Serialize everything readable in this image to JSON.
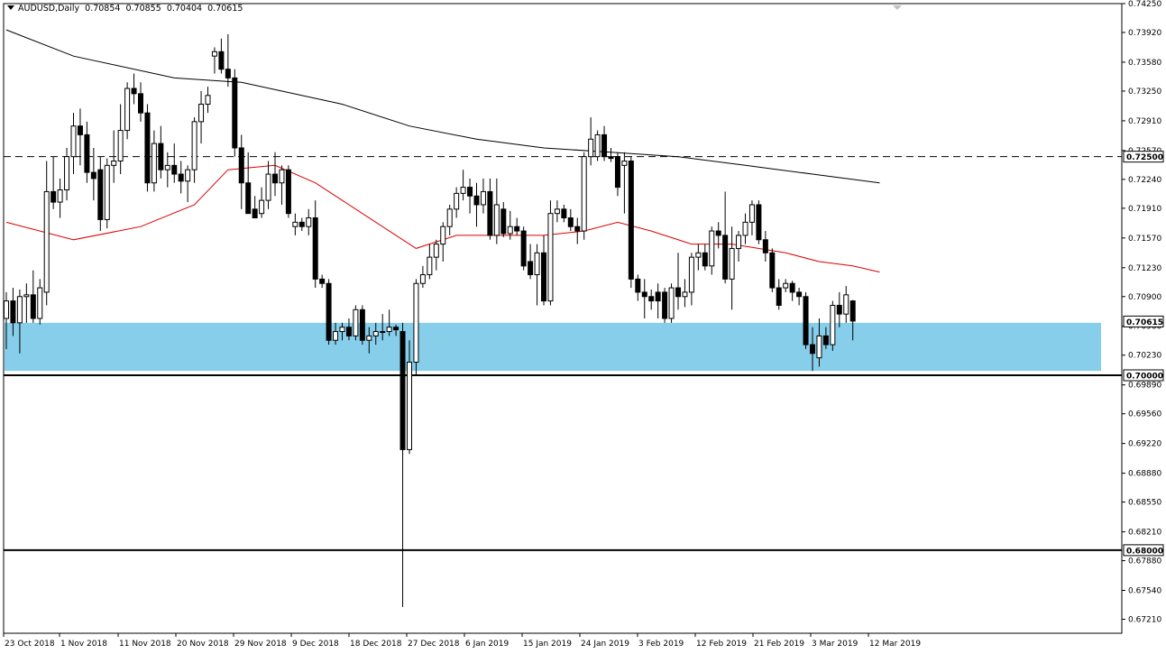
{
  "header": {
    "symbol": "AUDUSD,Daily",
    "open": "0.70854",
    "high": "0.70855",
    "low": "0.70404",
    "close": "0.70615"
  },
  "chart_data": {
    "type": "candlestick",
    "symbol": "AUDUSD",
    "timeframe": "Daily",
    "y_range": [
      0.6705,
      0.7425
    ],
    "y_ticks": [
      "0.74250",
      "0.73920",
      "0.73580",
      "0.73250",
      "0.72910",
      "0.72570",
      "0.72240",
      "0.71910",
      "0.71570",
      "0.71230",
      "0.70900",
      "0.70560",
      "0.70230",
      "0.69890",
      "0.69560",
      "0.69220",
      "0.68880",
      "0.68550",
      "0.68210",
      "0.67880",
      "0.67540",
      "0.67210"
    ],
    "x_ticks": [
      "23 Oct 2018",
      "1 Nov 2018",
      "11 Nov 2018",
      "20 Nov 2018",
      "29 Nov 2018",
      "9 Dec 2018",
      "18 Dec 2018",
      "27 Dec 2018",
      "6 Jan 2019",
      "15 Jan 2019",
      "24 Jan 2019",
      "3 Feb 2019",
      "12 Feb 2019",
      "21 Feb 2019",
      "3 Mar 2019",
      "12 Mar 2019"
    ],
    "candles": [
      {
        "o": 0.7065,
        "h": 0.7095,
        "l": 0.703,
        "c": 0.7085
      },
      {
        "o": 0.7085,
        "h": 0.71,
        "l": 0.7045,
        "c": 0.706
      },
      {
        "o": 0.706,
        "h": 0.7098,
        "l": 0.7025,
        "c": 0.709
      },
      {
        "o": 0.709,
        "h": 0.7105,
        "l": 0.706,
        "c": 0.7092
      },
      {
        "o": 0.7092,
        "h": 0.712,
        "l": 0.706,
        "c": 0.7065
      },
      {
        "o": 0.7065,
        "h": 0.711,
        "l": 0.7058,
        "c": 0.71
      },
      {
        "o": 0.7095,
        "h": 0.7245,
        "l": 0.708,
        "c": 0.721
      },
      {
        "o": 0.721,
        "h": 0.725,
        "l": 0.719,
        "c": 0.7198
      },
      {
        "o": 0.7198,
        "h": 0.7225,
        "l": 0.718,
        "c": 0.7212
      },
      {
        "o": 0.7212,
        "h": 0.726,
        "l": 0.72,
        "c": 0.725
      },
      {
        "o": 0.725,
        "h": 0.73,
        "l": 0.723,
        "c": 0.7285
      },
      {
        "o": 0.7285,
        "h": 0.7305,
        "l": 0.724,
        "c": 0.7275
      },
      {
        "o": 0.7275,
        "h": 0.729,
        "l": 0.722,
        "c": 0.7232
      },
      {
        "o": 0.7232,
        "h": 0.726,
        "l": 0.72,
        "c": 0.7225
      },
      {
        "o": 0.7235,
        "h": 0.725,
        "l": 0.7165,
        "c": 0.7178
      },
      {
        "o": 0.7178,
        "h": 0.7248,
        "l": 0.7168,
        "c": 0.724
      },
      {
        "o": 0.724,
        "h": 0.728,
        "l": 0.722,
        "c": 0.7245
      },
      {
        "o": 0.7245,
        "h": 0.731,
        "l": 0.723,
        "c": 0.728
      },
      {
        "o": 0.728,
        "h": 0.7335,
        "l": 0.727,
        "c": 0.7328
      },
      {
        "o": 0.7328,
        "h": 0.7345,
        "l": 0.731,
        "c": 0.7322
      },
      {
        "o": 0.7322,
        "h": 0.7335,
        "l": 0.729,
        "c": 0.73
      },
      {
        "o": 0.73,
        "h": 0.731,
        "l": 0.721,
        "c": 0.722
      },
      {
        "o": 0.722,
        "h": 0.728,
        "l": 0.721,
        "c": 0.7265
      },
      {
        "o": 0.7265,
        "h": 0.7285,
        "l": 0.7225,
        "c": 0.7235
      },
      {
        "o": 0.7235,
        "h": 0.7255,
        "l": 0.7215,
        "c": 0.724
      },
      {
        "o": 0.724,
        "h": 0.7265,
        "l": 0.722,
        "c": 0.723
      },
      {
        "o": 0.723,
        "h": 0.7245,
        "l": 0.7208,
        "c": 0.7222
      },
      {
        "o": 0.7222,
        "h": 0.724,
        "l": 0.7198,
        "c": 0.7235
      },
      {
        "o": 0.7235,
        "h": 0.7295,
        "l": 0.722,
        "c": 0.729
      },
      {
        "o": 0.729,
        "h": 0.7325,
        "l": 0.7265,
        "c": 0.731
      },
      {
        "o": 0.731,
        "h": 0.733,
        "l": 0.73,
        "c": 0.732
      },
      {
        "o": 0.7365,
        "h": 0.7375,
        "l": 0.7345,
        "c": 0.737
      },
      {
        "o": 0.737,
        "h": 0.7385,
        "l": 0.7345,
        "c": 0.735
      },
      {
        "o": 0.735,
        "h": 0.739,
        "l": 0.733,
        "c": 0.734
      },
      {
        "o": 0.734,
        "h": 0.735,
        "l": 0.725,
        "c": 0.726
      },
      {
        "o": 0.726,
        "h": 0.7275,
        "l": 0.719,
        "c": 0.722
      },
      {
        "o": 0.722,
        "h": 0.7255,
        "l": 0.7185,
        "c": 0.7185
      },
      {
        "o": 0.719,
        "h": 0.7205,
        "l": 0.718,
        "c": 0.718
      },
      {
        "o": 0.7185,
        "h": 0.7215,
        "l": 0.718,
        "c": 0.72
      },
      {
        "o": 0.72,
        "h": 0.7245,
        "l": 0.719,
        "c": 0.723
      },
      {
        "o": 0.723,
        "h": 0.7255,
        "l": 0.7205,
        "c": 0.722
      },
      {
        "o": 0.722,
        "h": 0.724,
        "l": 0.7195,
        "c": 0.7235
      },
      {
        "o": 0.7235,
        "h": 0.724,
        "l": 0.718,
        "c": 0.7185
      },
      {
        "o": 0.717,
        "h": 0.7185,
        "l": 0.716,
        "c": 0.7175
      },
      {
        "o": 0.7175,
        "h": 0.718,
        "l": 0.7165,
        "c": 0.717
      },
      {
        "o": 0.717,
        "h": 0.719,
        "l": 0.716,
        "c": 0.718
      },
      {
        "o": 0.718,
        "h": 0.72,
        "l": 0.71,
        "c": 0.711
      },
      {
        "o": 0.711,
        "h": 0.7115,
        "l": 0.71,
        "c": 0.7105
      },
      {
        "o": 0.7105,
        "h": 0.711,
        "l": 0.7035,
        "c": 0.704
      },
      {
        "o": 0.704,
        "h": 0.706,
        "l": 0.7035,
        "c": 0.705
      },
      {
        "o": 0.705,
        "h": 0.706,
        "l": 0.704,
        "c": 0.7055
      },
      {
        "o": 0.7055,
        "h": 0.7065,
        "l": 0.704,
        "c": 0.7045
      },
      {
        "o": 0.7045,
        "h": 0.708,
        "l": 0.704,
        "c": 0.7075
      },
      {
        "o": 0.7075,
        "h": 0.708,
        "l": 0.7035,
        "c": 0.704
      },
      {
        "o": 0.704,
        "h": 0.7055,
        "l": 0.7025,
        "c": 0.7045
      },
      {
        "o": 0.7045,
        "h": 0.706,
        "l": 0.7035,
        "c": 0.705
      },
      {
        "o": 0.705,
        "h": 0.707,
        "l": 0.704,
        "c": 0.705
      },
      {
        "o": 0.705,
        "h": 0.7075,
        "l": 0.7045,
        "c": 0.7055
      },
      {
        "o": 0.7055,
        "h": 0.7058,
        "l": 0.7045,
        "c": 0.7052
      },
      {
        "o": 0.705,
        "h": 0.706,
        "l": 0.6735,
        "c": 0.6915
      },
      {
        "o": 0.6915,
        "h": 0.704,
        "l": 0.691,
        "c": 0.7015
      },
      {
        "o": 0.7015,
        "h": 0.711,
        "l": 0.7,
        "c": 0.7105
      },
      {
        "o": 0.7105,
        "h": 0.7125,
        "l": 0.71,
        "c": 0.7115
      },
      {
        "o": 0.7115,
        "h": 0.715,
        "l": 0.711,
        "c": 0.7135
      },
      {
        "o": 0.7135,
        "h": 0.7155,
        "l": 0.712,
        "c": 0.715
      },
      {
        "o": 0.715,
        "h": 0.7175,
        "l": 0.713,
        "c": 0.717
      },
      {
        "o": 0.717,
        "h": 0.7195,
        "l": 0.716,
        "c": 0.719
      },
      {
        "o": 0.719,
        "h": 0.7215,
        "l": 0.718,
        "c": 0.7208
      },
      {
        "o": 0.7208,
        "h": 0.7235,
        "l": 0.72,
        "c": 0.7215
      },
      {
        "o": 0.7215,
        "h": 0.7225,
        "l": 0.7185,
        "c": 0.7205
      },
      {
        "o": 0.7205,
        "h": 0.722,
        "l": 0.717,
        "c": 0.7195
      },
      {
        "o": 0.7195,
        "h": 0.7225,
        "l": 0.7185,
        "c": 0.721
      },
      {
        "o": 0.721,
        "h": 0.7225,
        "l": 0.7155,
        "c": 0.716
      },
      {
        "o": 0.716,
        "h": 0.7225,
        "l": 0.715,
        "c": 0.7195
      },
      {
        "o": 0.719,
        "h": 0.7198,
        "l": 0.7158,
        "c": 0.7162
      },
      {
        "o": 0.7162,
        "h": 0.7188,
        "l": 0.7155,
        "c": 0.717
      },
      {
        "o": 0.717,
        "h": 0.718,
        "l": 0.716,
        "c": 0.7165
      },
      {
        "o": 0.7165,
        "h": 0.717,
        "l": 0.712,
        "c": 0.7125
      },
      {
        "o": 0.713,
        "h": 0.715,
        "l": 0.711,
        "c": 0.7115
      },
      {
        "o": 0.7115,
        "h": 0.715,
        "l": 0.708,
        "c": 0.714
      },
      {
        "o": 0.714,
        "h": 0.716,
        "l": 0.708,
        "c": 0.7085
      },
      {
        "o": 0.7085,
        "h": 0.72,
        "l": 0.708,
        "c": 0.7185
      },
      {
        "o": 0.7185,
        "h": 0.72,
        "l": 0.7175,
        "c": 0.719
      },
      {
        "o": 0.719,
        "h": 0.7195,
        "l": 0.7175,
        "c": 0.718
      },
      {
        "o": 0.718,
        "h": 0.719,
        "l": 0.7165,
        "c": 0.717
      },
      {
        "o": 0.717,
        "h": 0.718,
        "l": 0.715,
        "c": 0.7165
      },
      {
        "o": 0.7165,
        "h": 0.7255,
        "l": 0.7155,
        "c": 0.725
      },
      {
        "o": 0.725,
        "h": 0.7295,
        "l": 0.724,
        "c": 0.727
      },
      {
        "o": 0.725,
        "h": 0.728,
        "l": 0.7245,
        "c": 0.7275
      },
      {
        "o": 0.7275,
        "h": 0.7285,
        "l": 0.7245,
        "c": 0.725
      },
      {
        "o": 0.725,
        "h": 0.726,
        "l": 0.7244,
        "c": 0.7248
      },
      {
        "o": 0.725,
        "h": 0.7255,
        "l": 0.7205,
        "c": 0.7215
      },
      {
        "o": 0.724,
        "h": 0.7255,
        "l": 0.7185,
        "c": 0.7245
      },
      {
        "o": 0.7245,
        "h": 0.725,
        "l": 0.71,
        "c": 0.711
      },
      {
        "o": 0.711,
        "h": 0.7115,
        "l": 0.7085,
        "c": 0.7095
      },
      {
        "o": 0.7095,
        "h": 0.711,
        "l": 0.7065,
        "c": 0.709
      },
      {
        "o": 0.709,
        "h": 0.7098,
        "l": 0.7075,
        "c": 0.7085
      },
      {
        "o": 0.7095,
        "h": 0.7105,
        "l": 0.7065,
        "c": 0.7085
      },
      {
        "o": 0.7095,
        "h": 0.71,
        "l": 0.706,
        "c": 0.7065
      },
      {
        "o": 0.7065,
        "h": 0.7105,
        "l": 0.706,
        "c": 0.71
      },
      {
        "o": 0.71,
        "h": 0.714,
        "l": 0.7075,
        "c": 0.709
      },
      {
        "o": 0.709,
        "h": 0.711,
        "l": 0.7078,
        "c": 0.7095
      },
      {
        "o": 0.7095,
        "h": 0.714,
        "l": 0.708,
        "c": 0.7135
      },
      {
        "o": 0.7135,
        "h": 0.715,
        "l": 0.712,
        "c": 0.714
      },
      {
        "o": 0.714,
        "h": 0.715,
        "l": 0.712,
        "c": 0.7125
      },
      {
        "o": 0.7125,
        "h": 0.717,
        "l": 0.7115,
        "c": 0.7165
      },
      {
        "o": 0.7165,
        "h": 0.7175,
        "l": 0.7145,
        "c": 0.716
      },
      {
        "o": 0.716,
        "h": 0.721,
        "l": 0.7105,
        "c": 0.711
      },
      {
        "o": 0.711,
        "h": 0.717,
        "l": 0.7075,
        "c": 0.7145
      },
      {
        "o": 0.7145,
        "h": 0.7165,
        "l": 0.713,
        "c": 0.716
      },
      {
        "o": 0.716,
        "h": 0.7185,
        "l": 0.715,
        "c": 0.7175
      },
      {
        "o": 0.7175,
        "h": 0.72,
        "l": 0.716,
        "c": 0.7195
      },
      {
        "o": 0.7195,
        "h": 0.72,
        "l": 0.715,
        "c": 0.7155
      },
      {
        "o": 0.7155,
        "h": 0.7165,
        "l": 0.713,
        "c": 0.714
      },
      {
        "o": 0.714,
        "h": 0.7145,
        "l": 0.7095,
        "c": 0.71
      },
      {
        "o": 0.71,
        "h": 0.711,
        "l": 0.7075,
        "c": 0.708
      },
      {
        "o": 0.71,
        "h": 0.711,
        "l": 0.7095,
        "c": 0.7105
      },
      {
        "o": 0.7105,
        "h": 0.7108,
        "l": 0.7085,
        "c": 0.7095
      },
      {
        "o": 0.7095,
        "h": 0.71,
        "l": 0.708,
        "c": 0.709
      },
      {
        "o": 0.709,
        "h": 0.7095,
        "l": 0.703,
        "c": 0.7035
      },
      {
        "o": 0.7035,
        "h": 0.7055,
        "l": 0.7005,
        "c": 0.7025
      },
      {
        "o": 0.702,
        "h": 0.7065,
        "l": 0.701,
        "c": 0.7045
      },
      {
        "o": 0.7045,
        "h": 0.7055,
        "l": 0.703,
        "c": 0.7035
      },
      {
        "o": 0.7035,
        "h": 0.7085,
        "l": 0.7028,
        "c": 0.708
      },
      {
        "o": 0.708,
        "h": 0.7095,
        "l": 0.7055,
        "c": 0.707
      },
      {
        "o": 0.707,
        "h": 0.7102,
        "l": 0.706,
        "c": 0.7092
      },
      {
        "o": 0.7085,
        "h": 0.7086,
        "l": 0.704,
        "c": 0.7062
      }
    ],
    "sma_50": [
      [
        0,
        0.7175
      ],
      [
        10,
        0.7155
      ],
      [
        20,
        0.717
      ],
      [
        28,
        0.7195
      ],
      [
        33,
        0.7235
      ],
      [
        40,
        0.724
      ],
      [
        46,
        0.722
      ],
      [
        52,
        0.719
      ],
      [
        57,
        0.7165
      ],
      [
        61,
        0.7145
      ],
      [
        67,
        0.716
      ],
      [
        73,
        0.716
      ],
      [
        80,
        0.716
      ],
      [
        86,
        0.7165
      ],
      [
        91,
        0.7175
      ],
      [
        96,
        0.7165
      ],
      [
        102,
        0.715
      ],
      [
        108,
        0.715
      ],
      [
        116,
        0.714
      ],
      [
        121,
        0.713
      ],
      [
        126,
        0.7125
      ],
      [
        130,
        0.7118
      ]
    ],
    "sma_200": [
      [
        0,
        0.7395
      ],
      [
        10,
        0.7365
      ],
      [
        25,
        0.734
      ],
      [
        35,
        0.7335
      ],
      [
        50,
        0.731
      ],
      [
        60,
        0.7285
      ],
      [
        70,
        0.727
      ],
      [
        80,
        0.726
      ],
      [
        90,
        0.7255
      ],
      [
        100,
        0.725
      ],
      [
        110,
        0.724
      ],
      [
        120,
        0.723
      ],
      [
        130,
        0.722
      ]
    ],
    "horizontal_lines": [
      {
        "value": 0.725,
        "style": "dashed",
        "label": "0.72500"
      },
      {
        "value": 0.7,
        "style": "solid",
        "label": "0.70000"
      },
      {
        "value": 0.68,
        "style": "solid",
        "label": "0.68000"
      }
    ],
    "support_zone": [
      0.7005,
      0.706
    ],
    "current_price": "0.70615",
    "colors": {
      "support_zone": "#87ceeb",
      "sma_50": "#dd0000",
      "sma_200": "#000000",
      "candle": "#000000",
      "background": "#ffffff"
    }
  }
}
